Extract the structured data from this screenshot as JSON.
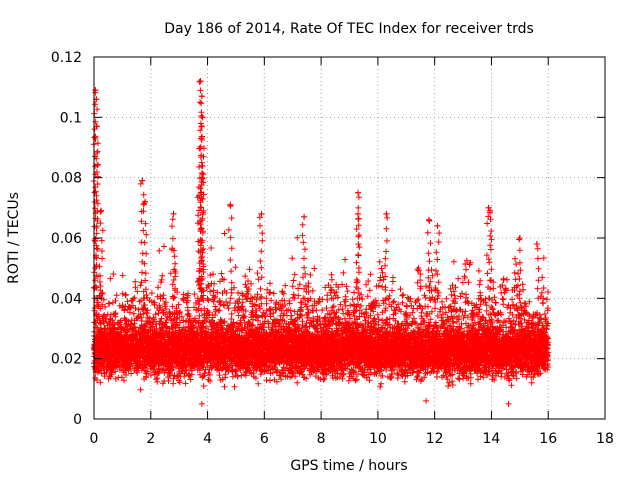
{
  "chart_data": {
    "type": "scatter",
    "title": "Day 186 of 2014, Rate Of TEC Index for receiver trds",
    "xlabel": "GPS time / hours",
    "ylabel": "ROTI / TECUs",
    "xlim": [
      0,
      18
    ],
    "ylim": [
      0,
      0.12
    ],
    "xticks": [
      0,
      2,
      4,
      6,
      8,
      10,
      12,
      14,
      16,
      18
    ],
    "xtick_labels": [
      "0",
      "2",
      "4",
      "6",
      "8",
      "10",
      "12",
      "14",
      "16",
      "18"
    ],
    "yticks": [
      0,
      0.02,
      0.04,
      0.06,
      0.08,
      0.1,
      0.12
    ],
    "ytick_labels": [
      "0",
      "0.02",
      "0.04",
      "0.06",
      "0.08",
      "0.1",
      "0.12"
    ],
    "grid": true,
    "marker": "+",
    "color": "#ff0000",
    "series": [
      {
        "name": "ROTI",
        "x_range": [
          0,
          16
        ],
        "typical_range": [
          0.01,
          0.035
        ],
        "peaks": [
          {
            "x": 0.05,
            "y": 0.109
          },
          {
            "x": 0.08,
            "y": 0.106
          },
          {
            "x": 0.1,
            "y": 0.097
          },
          {
            "x": 0.25,
            "y": 0.069
          },
          {
            "x": 1.7,
            "y": 0.079
          },
          {
            "x": 1.8,
            "y": 0.072
          },
          {
            "x": 2.8,
            "y": 0.068
          },
          {
            "x": 3.75,
            "y": 0.112
          },
          {
            "x": 3.8,
            "y": 0.107
          },
          {
            "x": 3.82,
            "y": 0.1
          },
          {
            "x": 3.78,
            "y": 0.093
          },
          {
            "x": 3.8,
            "y": 0.08
          },
          {
            "x": 3.7,
            "y": 0.074
          },
          {
            "x": 4.8,
            "y": 0.071
          },
          {
            "x": 5.9,
            "y": 0.068
          },
          {
            "x": 7.4,
            "y": 0.067
          },
          {
            "x": 9.3,
            "y": 0.075
          },
          {
            "x": 9.3,
            "y": 0.068
          },
          {
            "x": 10.3,
            "y": 0.068
          },
          {
            "x": 11.8,
            "y": 0.066
          },
          {
            "x": 12.1,
            "y": 0.064
          },
          {
            "x": 13.9,
            "y": 0.07
          },
          {
            "x": 13.95,
            "y": 0.069
          },
          {
            "x": 15.0,
            "y": 0.06
          },
          {
            "x": 15.6,
            "y": 0.058
          }
        ],
        "minima": [
          {
            "x": 11.7,
            "y": 0.006
          },
          {
            "x": 14.6,
            "y": 0.005
          },
          {
            "x": 3.8,
            "y": 0.005
          }
        ]
      }
    ]
  }
}
